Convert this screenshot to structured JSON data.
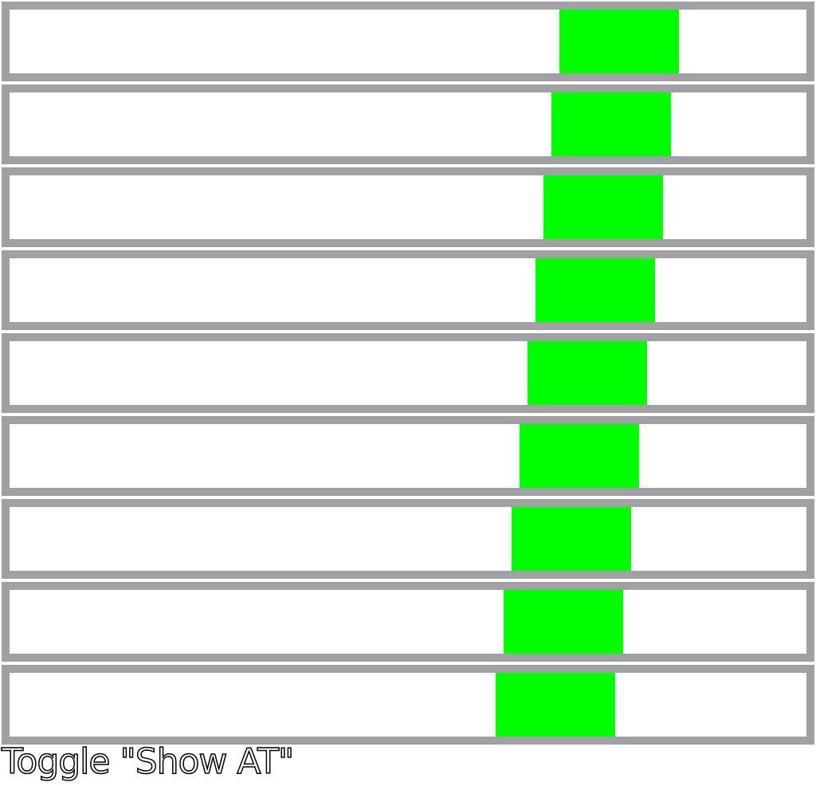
{
  "colors": {
    "track_border": "#a0a0a4",
    "track_fill": "#ffffff",
    "thumb": "#00ff00"
  },
  "sliders": [
    {
      "value": 0.69
    },
    {
      "value": 0.68
    },
    {
      "value": 0.67
    },
    {
      "value": 0.66
    },
    {
      "value": 0.65
    },
    {
      "value": 0.64
    },
    {
      "value": 0.63
    },
    {
      "value": 0.62
    },
    {
      "value": 0.61
    }
  ],
  "toggle_label": "Toggle \"Show AT\""
}
